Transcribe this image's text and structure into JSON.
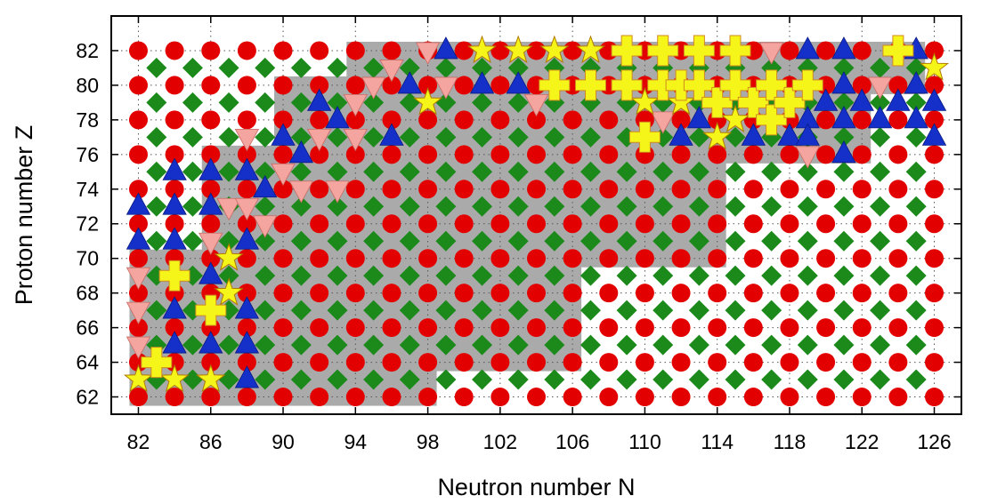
{
  "chart_data": {
    "type": "scatter",
    "title": "",
    "xlabel": "Neutron number N",
    "ylabel": "Proton number Z",
    "xlim": [
      80.5,
      127.5
    ],
    "ylim": [
      61,
      84
    ],
    "xticks": [
      82,
      86,
      90,
      94,
      98,
      102,
      106,
      110,
      114,
      118,
      122,
      126
    ],
    "yticks": [
      62,
      64,
      66,
      68,
      70,
      72,
      74,
      76,
      78,
      80,
      82
    ],
    "grid": "dotted",
    "legend": "none",
    "shaded_region_color": "#aaaaaa",
    "shaded_region": [
      {
        "z": [
          62,
          64
        ],
        "n": [
          82,
          98
        ]
      },
      {
        "z": [
          64,
          70
        ],
        "n": [
          82,
          106
        ]
      },
      {
        "z": [
          70,
          76
        ],
        "n": [
          86,
          114
        ]
      },
      {
        "z": [
          76,
          80
        ],
        "n": [
          90,
          122
        ]
      },
      {
        "z": [
          80,
          82
        ],
        "n": [
          94,
          125
        ]
      }
    ],
    "background_pattern": {
      "even_n_even_z": {
        "shape": "circle",
        "color": "#e30000"
      },
      "odd_n_odd_z": {
        "shape": "diamond",
        "color": "#1b8a1b"
      },
      "n_range": [
        82,
        126
      ],
      "z_range": [
        62,
        82
      ]
    },
    "series": [
      {
        "symbol": "triangle-up",
        "color": "#1530c8",
        "points": [
          [
            82,
            73
          ],
          [
            82,
            71
          ],
          [
            84,
            75
          ],
          [
            84,
            73
          ],
          [
            84,
            71
          ],
          [
            84,
            67
          ],
          [
            84,
            65
          ],
          [
            86,
            75
          ],
          [
            86,
            73
          ],
          [
            86,
            69
          ],
          [
            86,
            65
          ],
          [
            88,
            75
          ],
          [
            88,
            71
          ],
          [
            88,
            67
          ],
          [
            88,
            65
          ],
          [
            88,
            63
          ],
          [
            89,
            74
          ],
          [
            90,
            77
          ],
          [
            91,
            76
          ],
          [
            92,
            79
          ],
          [
            93,
            78
          ],
          [
            96,
            77
          ],
          [
            97,
            80
          ],
          [
            99,
            82
          ],
          [
            101,
            80
          ],
          [
            103,
            80
          ],
          [
            112,
            77
          ],
          [
            113,
            78
          ],
          [
            116,
            77
          ],
          [
            118,
            77
          ],
          [
            119,
            82
          ],
          [
            119,
            78
          ],
          [
            119,
            77
          ],
          [
            120,
            79
          ],
          [
            121,
            82
          ],
          [
            121,
            80
          ],
          [
            121,
            78
          ],
          [
            121,
            76
          ],
          [
            122,
            79
          ],
          [
            123,
            78
          ],
          [
            124,
            79
          ],
          [
            125,
            82
          ],
          [
            125,
            80
          ],
          [
            125,
            78
          ],
          [
            126,
            79
          ],
          [
            126,
            77
          ]
        ]
      },
      {
        "symbol": "triangle-down",
        "color": "#f4a5a0",
        "points": [
          [
            82,
            69
          ],
          [
            82,
            67
          ],
          [
            82,
            65
          ],
          [
            86,
            71
          ],
          [
            87,
            73
          ],
          [
            88,
            77
          ],
          [
            88,
            73
          ],
          [
            89,
            72
          ],
          [
            90,
            75
          ],
          [
            91,
            74
          ],
          [
            92,
            77
          ],
          [
            93,
            74
          ],
          [
            94,
            79
          ],
          [
            94,
            77
          ],
          [
            95,
            80
          ],
          [
            96,
            81
          ],
          [
            98,
            82
          ],
          [
            99,
            80
          ],
          [
            104,
            79
          ],
          [
            111,
            78
          ],
          [
            117,
            82
          ],
          [
            119,
            76
          ],
          [
            123,
            80
          ]
        ]
      },
      {
        "symbol": "star",
        "color": "#f5f51a",
        "points": [
          [
            82,
            63
          ],
          [
            84,
            63
          ],
          [
            86,
            63
          ],
          [
            87,
            70
          ],
          [
            87,
            68
          ],
          [
            98,
            79
          ],
          [
            101,
            82
          ],
          [
            103,
            82
          ],
          [
            105,
            82
          ],
          [
            107,
            82
          ],
          [
            110,
            79
          ],
          [
            112,
            79
          ],
          [
            114,
            77
          ],
          [
            115,
            78
          ],
          [
            126,
            81
          ]
        ]
      },
      {
        "symbol": "cross",
        "color": "#f5f51a",
        "points": [
          [
            83,
            64
          ],
          [
            84,
            69
          ],
          [
            86,
            67
          ],
          [
            105,
            80
          ],
          [
            107,
            80
          ],
          [
            109,
            82
          ],
          [
            109,
            80
          ],
          [
            110,
            77
          ],
          [
            111,
            82
          ],
          [
            111,
            80
          ],
          [
            112,
            80
          ],
          [
            113,
            82
          ],
          [
            113,
            80
          ],
          [
            114,
            79
          ],
          [
            115,
            82
          ],
          [
            115,
            80
          ],
          [
            116,
            79
          ],
          [
            117,
            80
          ],
          [
            117,
            78
          ],
          [
            118,
            79
          ],
          [
            119,
            80
          ],
          [
            124,
            82
          ]
        ]
      }
    ]
  }
}
